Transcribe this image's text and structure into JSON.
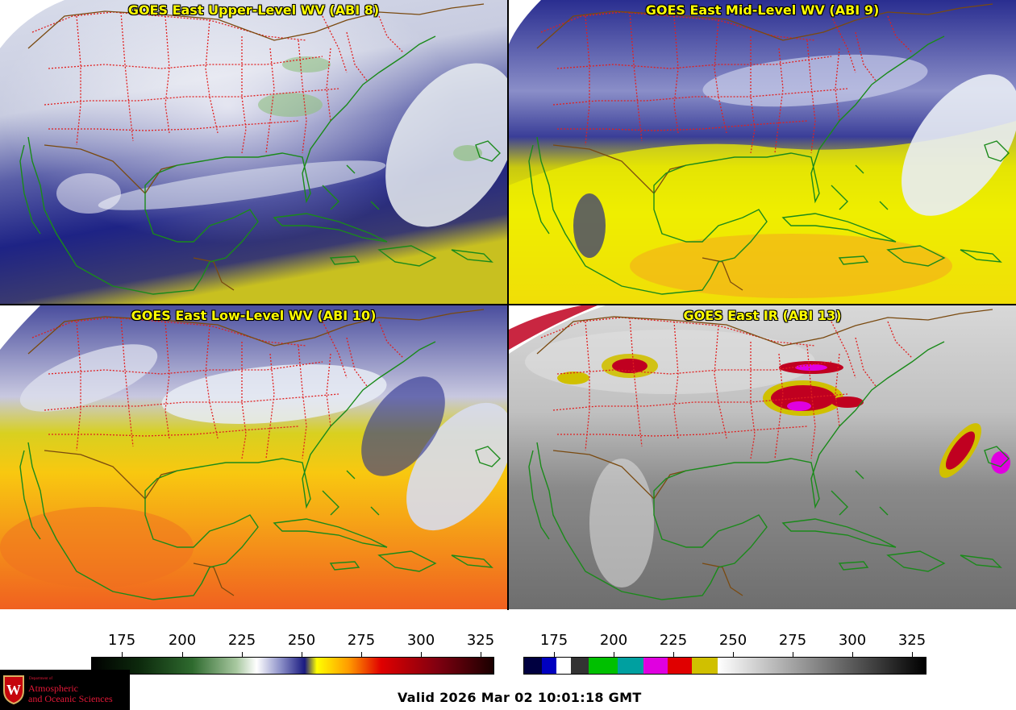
{
  "panels": [
    {
      "title": "GOES East Upper-Level WV (ABI 8)"
    },
    {
      "title": "GOES East Mid-Level WV (ABI 9)"
    },
    {
      "title": "GOES East Low-Level WV (ABI 10)"
    },
    {
      "title": "GOES East IR (ABI 13)"
    }
  ],
  "colorbars": {
    "wv": {
      "ticks": [
        "175",
        "200",
        "225",
        "250",
        "275",
        "300",
        "325"
      ]
    },
    "ir": {
      "ticks": [
        "175",
        "200",
        "225",
        "250",
        "275",
        "300",
        "325"
      ]
    }
  },
  "logo": {
    "dept": "Department of",
    "line1": "Atmospheric",
    "line2": "and Oceanic Sciences"
  },
  "valid_text": "Valid 2026 Mar 02 10:01:18 GMT",
  "colors": {
    "coastline": "#1a8a1a",
    "state_borders": "#e02020",
    "country_borders": "#7a4a10",
    "title_text": "#ffff00"
  }
}
